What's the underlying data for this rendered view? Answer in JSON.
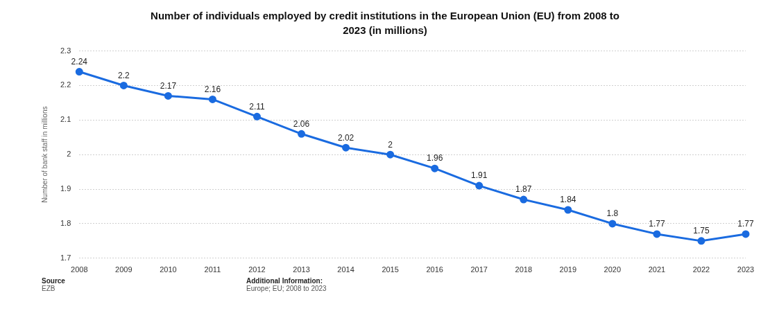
{
  "chart_data": {
    "type": "line",
    "title": "Number of individuals employed by credit institutions in the European Union (EU) from 2008 to 2023 (in millions)",
    "ylabel": "Number of bank staff in millions",
    "categories": [
      "2008",
      "2009",
      "2010",
      "2011",
      "2012",
      "2013",
      "2014",
      "2015",
      "2016",
      "2017",
      "2018",
      "2019",
      "2020",
      "2021",
      "2022",
      "2023"
    ],
    "series": [
      {
        "color": "#1a6be0",
        "values": [
          2.24,
          2.2,
          2.17,
          2.16,
          2.11,
          2.06,
          2.02,
          2,
          1.96,
          1.91,
          1.87,
          1.84,
          1.8,
          1.77,
          1.75,
          1.77
        ]
      }
    ],
    "ylim": [
      1.7,
      2.3
    ],
    "yticks": [
      1.7,
      1.8,
      1.9,
      2,
      2.1,
      2.2,
      2.3
    ],
    "grid": "y",
    "legend": false,
    "marker": "circle",
    "line_style": "solid",
    "data_labels": true,
    "annotations": [
      "Source",
      "EZB",
      "Additional Information:",
      "Europe; EU; 2008 to 2023"
    ]
  }
}
